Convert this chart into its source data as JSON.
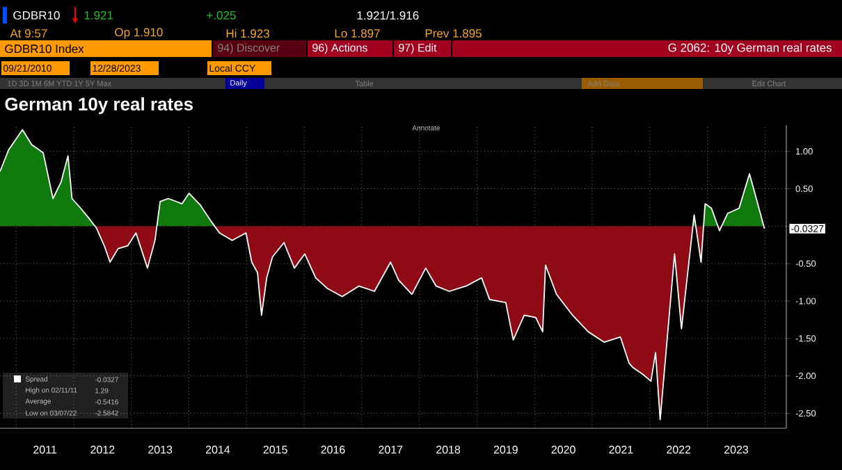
{
  "chart_data": {
    "type": "area",
    "title": "German 10y real rates",
    "annotations": [
      "GDBR10",
      "1.921",
      "+.025",
      "1.921/1.916",
      "At 9:57",
      "Op 1.910",
      "Hi 1.923",
      "Lo 1.897",
      "Prev 1.895",
      "GDBR10 Index",
      "94) Discover",
      "96) Actions",
      "97) Edit",
      "G 2062: 10y German real rates",
      "09/21/2010",
      "12/28/2023",
      "Local CCY",
      "1D 3D 1M 6M YTD 1Y 5Y Max",
      "Daily",
      "Table",
      "Add Data",
      "Edit Chart",
      "Annotate",
      "High on 02/11/11",
      "1.29",
      "Average",
      "-0.5416",
      "Low on 03/07/22",
      "-2.5842",
      "-0.0327"
    ],
    "x": [
      "2010-09-21",
      "2010-11-13",
      "2011-02-11",
      "2011-04-10",
      "2011-06-20",
      "2011-08-21",
      "2011-10-13",
      "2011-11-26",
      "2011-12-22",
      "2012-02-14",
      "2012-03-30",
      "2012-05-22",
      "2012-07-14",
      "2012-08-18",
      "2012-10-10",
      "2012-12-10",
      "2013-02-01",
      "2013-04-13",
      "2013-06-01",
      "2013-07-01",
      "2013-08-23",
      "2013-11-19",
      "2014-01-02",
      "2014-03-14",
      "2014-05-23",
      "2014-07-15",
      "2014-10-03",
      "2014-12-30",
      "2015-02-03",
      "2015-03-10",
      "2015-04-05",
      "2015-05-07",
      "2015-06-16",
      "2015-08-25",
      "2015-10-30",
      "2016-01-04",
      "2016-03-15",
      "2016-05-25",
      "2016-08-30",
      "2016-12-13",
      "2017-03-21",
      "2017-07-04",
      "2017-08-22",
      "2017-11-14",
      "2018-02-10",
      "2018-04-17",
      "2018-07-10",
      "2018-10-24",
      "2019-01-29",
      "2019-03-23",
      "2019-07-02",
      "2019-08-19",
      "2019-10-29",
      "2020-01-08",
      "2020-02-21",
      "2020-03-10",
      "2020-05-19",
      "2020-08-29",
      "2020-12-08",
      "2021-03-20",
      "2021-06-29",
      "2021-08-21",
      "2021-09-17",
      "2021-11-17",
      "2022-01-09",
      "2022-02-05",
      "2022-03-07",
      "2022-06-08",
      "2022-07-22",
      "2022-10-10",
      "2022-11-23",
      "2022-12-19",
      "2023-01-28",
      "2023-03-17",
      "2023-05-10",
      "2023-07-19",
      "2023-09-23",
      "2023-10-24",
      "2023-12-28"
    ],
    "series": [
      {
        "name": "Spread",
        "color": "#ffffff",
        "values": [
          0.73,
          1.02,
          1.29,
          1.09,
          0.98,
          0.37,
          0.59,
          0.94,
          0.37,
          0.24,
          0.13,
          -0.02,
          -0.26,
          -0.48,
          -0.3,
          -0.26,
          -0.09,
          -0.56,
          -0.19,
          0.33,
          0.37,
          0.3,
          0.44,
          0.28,
          0.06,
          -0.09,
          -0.19,
          -0.09,
          -0.48,
          -0.62,
          -1.19,
          -0.69,
          -0.41,
          -0.22,
          -0.56,
          -0.37,
          -0.69,
          -0.83,
          -0.94,
          -0.8,
          -0.87,
          -0.48,
          -0.72,
          -0.91,
          -0.56,
          -0.8,
          -0.87,
          -0.8,
          -0.69,
          -0.98,
          -1.02,
          -1.52,
          -1.19,
          -1.22,
          -1.41,
          -0.52,
          -0.91,
          -1.19,
          -1.41,
          -1.55,
          -1.48,
          -1.83,
          -1.89,
          -1.98,
          -2.07,
          -1.69,
          -2.5842,
          -0.37,
          -1.37,
          0.15,
          -0.48,
          0.3,
          0.24,
          -0.06,
          0.17,
          0.24,
          0.7,
          0.48,
          -0.0327
        ]
      }
    ],
    "xlim": [
      "2010-09-21",
      "2024-05-15"
    ],
    "xticks": [
      {
        "value": "2011-01-01",
        "label": null
      },
      {
        "value": "2012-01-01",
        "label": null
      },
      {
        "value": "2013-01-01",
        "label": null
      },
      {
        "value": "2014-01-01",
        "label": null
      },
      {
        "value": "2015-01-01",
        "label": null
      },
      {
        "value": "2016-01-01",
        "label": null
      },
      {
        "value": "2017-01-01",
        "label": null
      },
      {
        "value": "2018-01-01",
        "label": null
      },
      {
        "value": "2019-01-01",
        "label": null
      },
      {
        "value": "2020-01-01",
        "label": null
      },
      {
        "value": "2021-01-01",
        "label": null
      },
      {
        "value": "2022-01-01",
        "label": null
      },
      {
        "value": "2023-01-01",
        "label": null
      },
      {
        "value": "2024-01-01",
        "label": null
      },
      {
        "value": "2011-07-02",
        "label": "2011"
      },
      {
        "value": "2012-07-02",
        "label": "2012"
      },
      {
        "value": "2013-07-02",
        "label": "2013"
      },
      {
        "value": "2014-07-02",
        "label": "2014"
      },
      {
        "value": "2015-07-02",
        "label": "2015"
      },
      {
        "value": "2016-07-02",
        "label": "2016"
      },
      {
        "value": "2017-07-02",
        "label": "2017"
      },
      {
        "value": "2018-07-02",
        "label": "2018"
      },
      {
        "value": "2019-07-02",
        "label": "2019"
      },
      {
        "value": "2020-07-02",
        "label": "2020"
      },
      {
        "value": "2021-07-02",
        "label": "2021"
      },
      {
        "value": "2022-07-02",
        "label": "2022"
      },
      {
        "value": "2023-07-02",
        "label": "2023"
      }
    ],
    "ylim": [
      -2.7,
      1.35
    ],
    "yticks": [
      {
        "value": 1,
        "label": "1.00"
      },
      {
        "value": 0.5,
        "label": "0.50"
      },
      {
        "value": 0,
        "label": null
      },
      {
        "value": -0.5,
        "label": "-0.50"
      },
      {
        "value": -1,
        "label": "-1.00"
      },
      {
        "value": -1.5,
        "label": "-1.50"
      },
      {
        "value": -2,
        "label": "-2.00"
      },
      {
        "value": -2.5,
        "label": "-2.50"
      }
    ],
    "grid": true,
    "legend": "bottom left"
  }
}
